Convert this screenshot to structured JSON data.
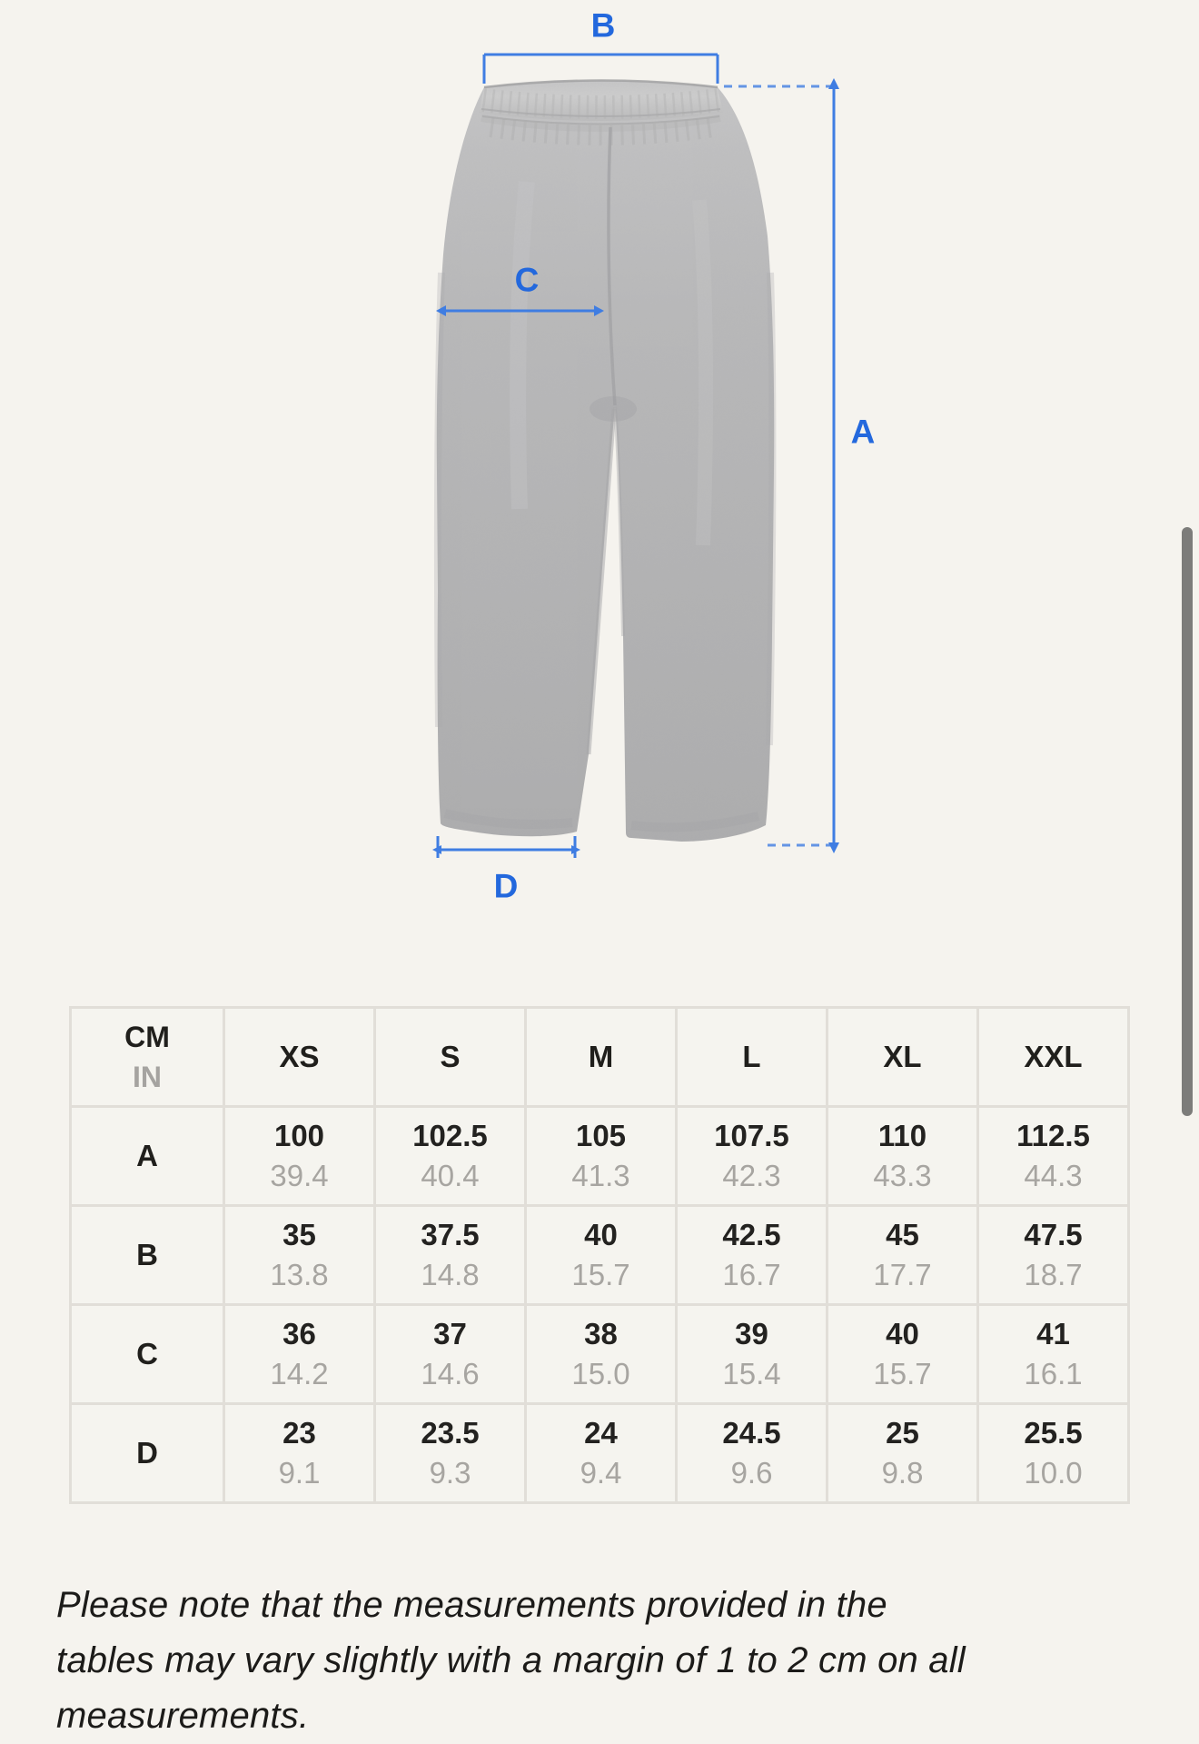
{
  "colors": {
    "background": "#f5f3ee",
    "accent_label": "#2368dd",
    "accent_line": "#3f7de2",
    "accent_dash": "#6494e4",
    "table_border": "#e1ded8",
    "text_primary": "#201f1c",
    "text_secondary": "#a7a5a1",
    "scrollbar": "#7c7c7a",
    "pants_gray": "#b9b9ba"
  },
  "diagram": {
    "pants_image": "gray-sweatpants-front-view",
    "label_a": "A",
    "label_b": "B",
    "label_c": "C",
    "label_d": "D"
  },
  "size_table": {
    "unit_primary": "CM",
    "unit_secondary": "IN",
    "columns": [
      "XS",
      "S",
      "M",
      "L",
      "XL",
      "XXL"
    ],
    "rows": [
      {
        "label": "A",
        "cm": [
          "100",
          "102.5",
          "105",
          "107.5",
          "110",
          "112.5"
        ],
        "in": [
          "39.4",
          "40.4",
          "41.3",
          "42.3",
          "43.3",
          "44.3"
        ]
      },
      {
        "label": "B",
        "cm": [
          "35",
          "37.5",
          "40",
          "42.5",
          "45",
          "47.5"
        ],
        "in": [
          "13.8",
          "14.8",
          "15.7",
          "16.7",
          "17.7",
          "18.7"
        ]
      },
      {
        "label": "C",
        "cm": [
          "36",
          "37",
          "38",
          "39",
          "40",
          "41"
        ],
        "in": [
          "14.2",
          "14.6",
          "15.0",
          "15.4",
          "15.7",
          "16.1"
        ]
      },
      {
        "label": "D",
        "cm": [
          "23",
          "23.5",
          "24",
          "24.5",
          "25",
          "25.5"
        ],
        "in": [
          "9.1",
          "9.3",
          "9.4",
          "9.6",
          "9.8",
          "10.0"
        ]
      }
    ]
  },
  "note": {
    "lines": [
      "Please note that the measurements provided in the",
      "tables may vary slightly with a margin of 1 to 2 cm on all",
      "measurements."
    ]
  }
}
